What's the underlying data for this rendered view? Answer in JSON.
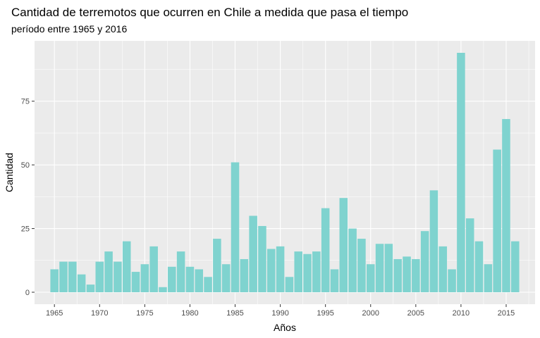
{
  "chart_data": {
    "type": "bar",
    "title": "Cantidad de terremotos que ocurren en Chile a medida que pasa el tiempo",
    "subtitle": "período entre 1965 y 2016",
    "xlabel": "Años",
    "ylabel": "Cantidad",
    "x": [
      1965,
      1966,
      1967,
      1968,
      1969,
      1970,
      1971,
      1972,
      1973,
      1974,
      1975,
      1976,
      1977,
      1978,
      1979,
      1980,
      1981,
      1982,
      1983,
      1984,
      1985,
      1986,
      1987,
      1988,
      1989,
      1990,
      1991,
      1992,
      1993,
      1994,
      1995,
      1996,
      1997,
      1998,
      1999,
      2000,
      2001,
      2002,
      2003,
      2004,
      2005,
      2006,
      2007,
      2008,
      2009,
      2010,
      2011,
      2012,
      2013,
      2014,
      2015,
      2016
    ],
    "values": [
      9,
      12,
      12,
      7,
      3,
      12,
      16,
      12,
      20,
      8,
      11,
      18,
      2,
      10,
      16,
      10,
      9,
      6,
      21,
      11,
      51,
      13,
      30,
      26,
      17,
      18,
      6,
      16,
      15,
      16,
      33,
      9,
      37,
      25,
      21,
      11,
      19,
      19,
      13,
      14,
      13,
      24,
      40,
      18,
      9,
      94,
      29,
      20,
      11,
      56,
      68,
      20
    ],
    "xlim": [
      1962.8,
      2018.2
    ],
    "ylim": [
      -4.7,
      98.7
    ],
    "x_ticks": [
      1965,
      1970,
      1975,
      1980,
      1985,
      1990,
      1995,
      2000,
      2005,
      2010,
      2015
    ],
    "x_tick_labels": [
      "1965",
      "1970",
      "1975",
      "1980",
      "1985",
      "1990",
      "1995",
      "2000",
      "2005",
      "2010",
      "2015"
    ],
    "y_ticks": [
      0,
      25,
      50,
      75
    ],
    "y_tick_labels": [
      "0",
      "25",
      "50",
      "75"
    ],
    "grid": true,
    "legend": "none",
    "colors": {
      "bar": "#7fd3cf",
      "panel": "#ebebeb",
      "grid_major": "#ffffff"
    }
  }
}
